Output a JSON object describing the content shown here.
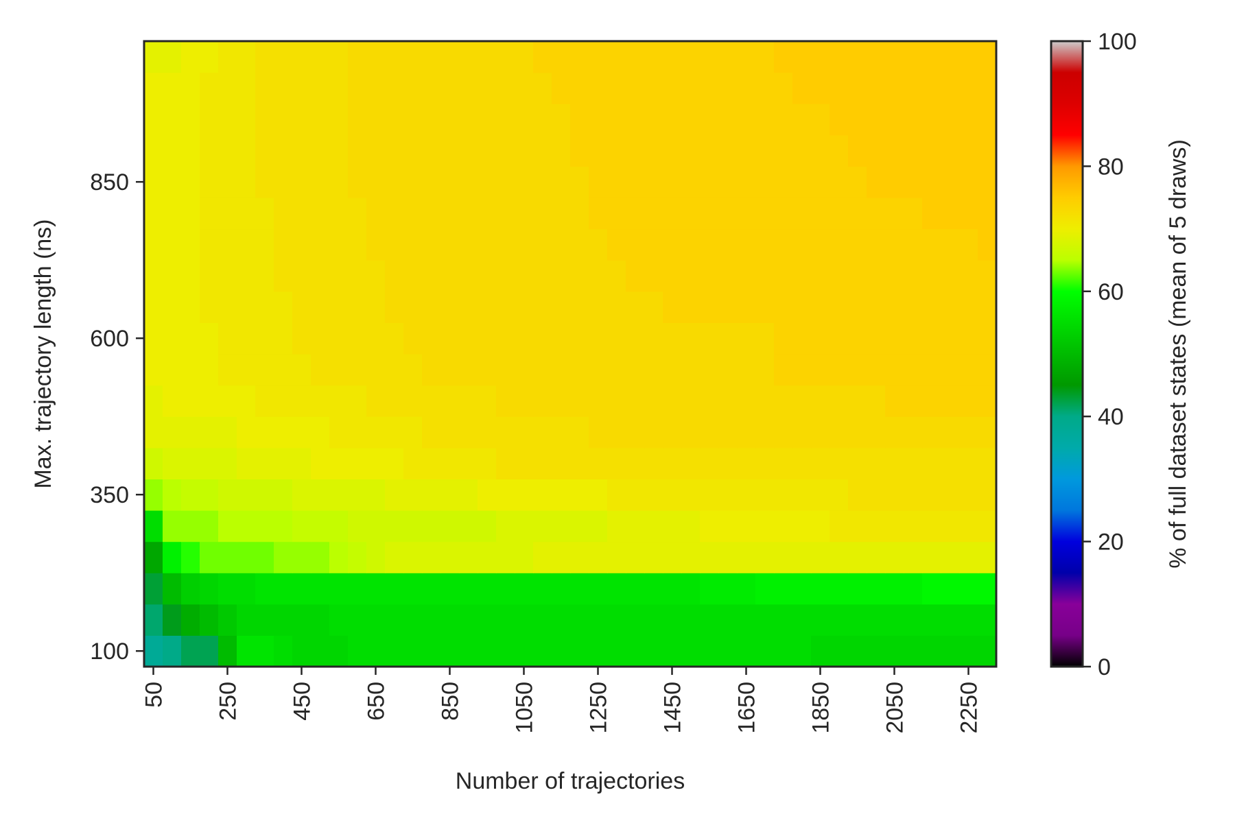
{
  "chart_data": {
    "type": "heatmap",
    "title": "",
    "xlabel": "Number of trajectories",
    "ylabel": "Max. trajectory length (ns)",
    "colorbar_label": "% of full dataset states (mean of 5 draws)",
    "colormap": "nipy_spectral",
    "x_start": 50,
    "x_step": 50,
    "x_count": 46,
    "y_start": 100,
    "y_step": 50,
    "y_count": 20,
    "xlim": [
      25,
      2325
    ],
    "ylim": [
      75,
      1075
    ],
    "x_ticks": [
      50,
      250,
      450,
      650,
      850,
      1050,
      1250,
      1450,
      1650,
      1850,
      2050,
      2250
    ],
    "y_ticks": [
      100,
      350,
      600,
      850
    ],
    "colorbar_range": [
      0,
      100
    ],
    "colorbar_ticks": [
      0,
      20,
      40,
      60,
      80,
      100
    ],
    "z_by_row": [
      "IKMMU[[ZYYYZZZZZZZZZZZZZZZZZZZZZZZZZYYYYYYYYYYYY",
      "LOSUWYYYYYZZZZZZZZZZZZZZZZZZZZZZZZZZZZZZZZZZZZ",
      "NUXYZZ[[[[[[[[[[[[[[[[[[[[[[[[\\\\\\]]]]]]]]]^^^^^",
      "R]`bbbbcccdefgggggggghhhhhhhhhhhhhhhhhhhhhhhhh",
      "Zcccddddeeeffffffffgggggghhhhhiiiiiiijjjjjjjjjj",
      "cdeeffffggggghhhhhiiiiiiijjjjjjjjjjjjjkkkkkkkk",
      "fgggghhhhiiiiijjjjjkkkkkkkkkkkkkkkkkkkkkkkkkk",
      "hhhhhiiiiijjjjjkkkkkkkkklllllllllllllllllllll",
      "hiiiiijjjjjjkkkkkkklllllllllllllllllllllmmmmm",
      "iiiijjjjjkkkkkklllllllllllllllllllmmmmmmmmmmmm",
      "iiiijjjjkkkkkkllllllllllllllllllllmmmmmmmmmmmm",
      "iiijjjjjkkkkklllllllllllllllmmmmmmmmmmmmmmmmmm",
      "iiijjjjkkkkkklllllllllllllmmmmmmmmmmmmmmmmmmmm",
      "iiijjjjkkkkklllllllllllllmmmmmmmmmmmmmmmmmmmmn",
      "iiijjjjkkkkkllllllllllllmmmmmmmmmmmmmmmmmmnnnn",
      "iiijjjkkkkklllllllllllllmmmmmmmmmmmmmmmnnnnnnn",
      "iiijjjkkkkkllllllllllllmmmmmmmmmmmmmmmnnnnnnnn",
      "iiijjjkkkkkllllllllllllmmmmmmmmmmmmmmnnnnnnnnn",
      "iiijjjkkkkklllllllllllmmmmmmmmmmmmmnnnnnnnnnnn",
      "hhiijjkkkkkllllllllllmmmmmmmmmmmmmnnnnnnnnnnnnn"
    ]
  }
}
